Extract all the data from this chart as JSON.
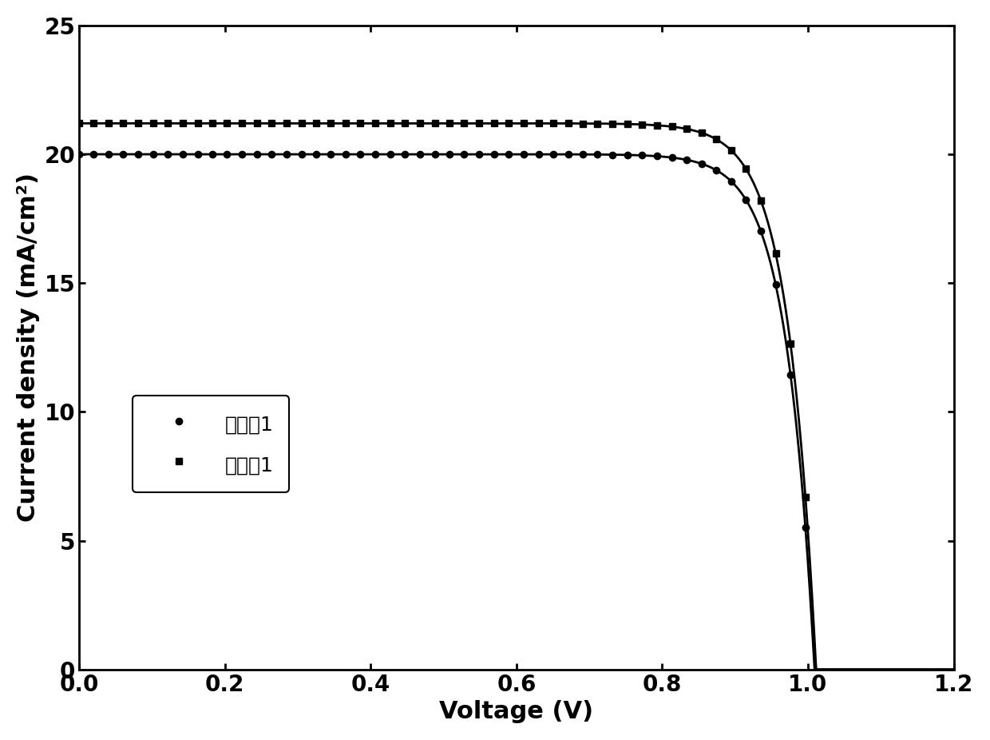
{
  "title": "",
  "xlabel": "Voltage (V)",
  "ylabel": "Current density (mA/cm²)",
  "xlim": [
    0,
    1.2
  ],
  "ylim": [
    0,
    25
  ],
  "xticks": [
    0.0,
    0.2,
    0.4,
    0.6,
    0.8,
    1.0,
    1.2
  ],
  "yticks": [
    0,
    5,
    10,
    15,
    20,
    25
  ],
  "curve1_label": "对比例1",
  "curve2_label": "实施例1",
  "curve1_Jsc": 20.0,
  "curve1_Voc": 1.055,
  "curve1_J0": 1e-10,
  "curve1_n": 1.5,
  "curve2_Jsc": 21.2,
  "curve2_Voc": 1.085,
  "curve2_J0": 1e-10,
  "curve2_n": 1.5,
  "line_color": "#000000",
  "linewidth": 2.0,
  "markersize": 6,
  "legend_fontsize": 18,
  "axis_fontsize": 22,
  "tick_fontsize": 20,
  "background_color": "#ffffff"
}
